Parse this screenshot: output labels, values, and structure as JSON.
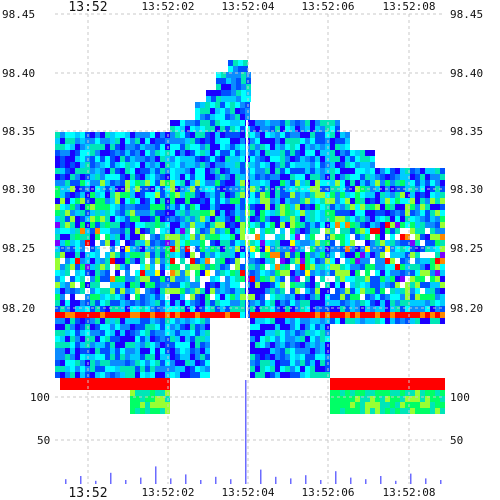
{
  "chart_data": {
    "type": "heatmap",
    "title": "",
    "x_tick_labels": [
      "13:52",
      "13:52:02",
      "13:52:04",
      "13:52:06",
      "13:52:08"
    ],
    "y_price_ticks": [
      "98.45",
      "98.40",
      "98.35",
      "98.30",
      "98.25",
      "98.20"
    ],
    "y_volume_ticks": [
      "100",
      "50"
    ],
    "price_range": [
      98.155,
      98.45
    ],
    "volume_range": [
      0,
      130
    ],
    "grid": true,
    "colors": {
      "deep_blue": "#1a00ff",
      "blue": "#0050ff",
      "azure": "#0a8cff",
      "cyan": "#00ccff",
      "aqua": "#00ffff",
      "teal": "#00e6b8",
      "green": "#00ff66",
      "lime": "#99ff33",
      "yellow": "#ffff00",
      "orange": "#ff8800",
      "red": "#ff0000",
      "purple": "#7a00ff",
      "volume": "#6b6bff"
    },
    "volume_series": {
      "name": "",
      "values": [
        6,
        10,
        4,
        14,
        5,
        8,
        22,
        7,
        12,
        5,
        9,
        6,
        130,
        18,
        9,
        7,
        11,
        5,
        16,
        8,
        6,
        10,
        4,
        13,
        7,
        5
      ]
    }
  }
}
